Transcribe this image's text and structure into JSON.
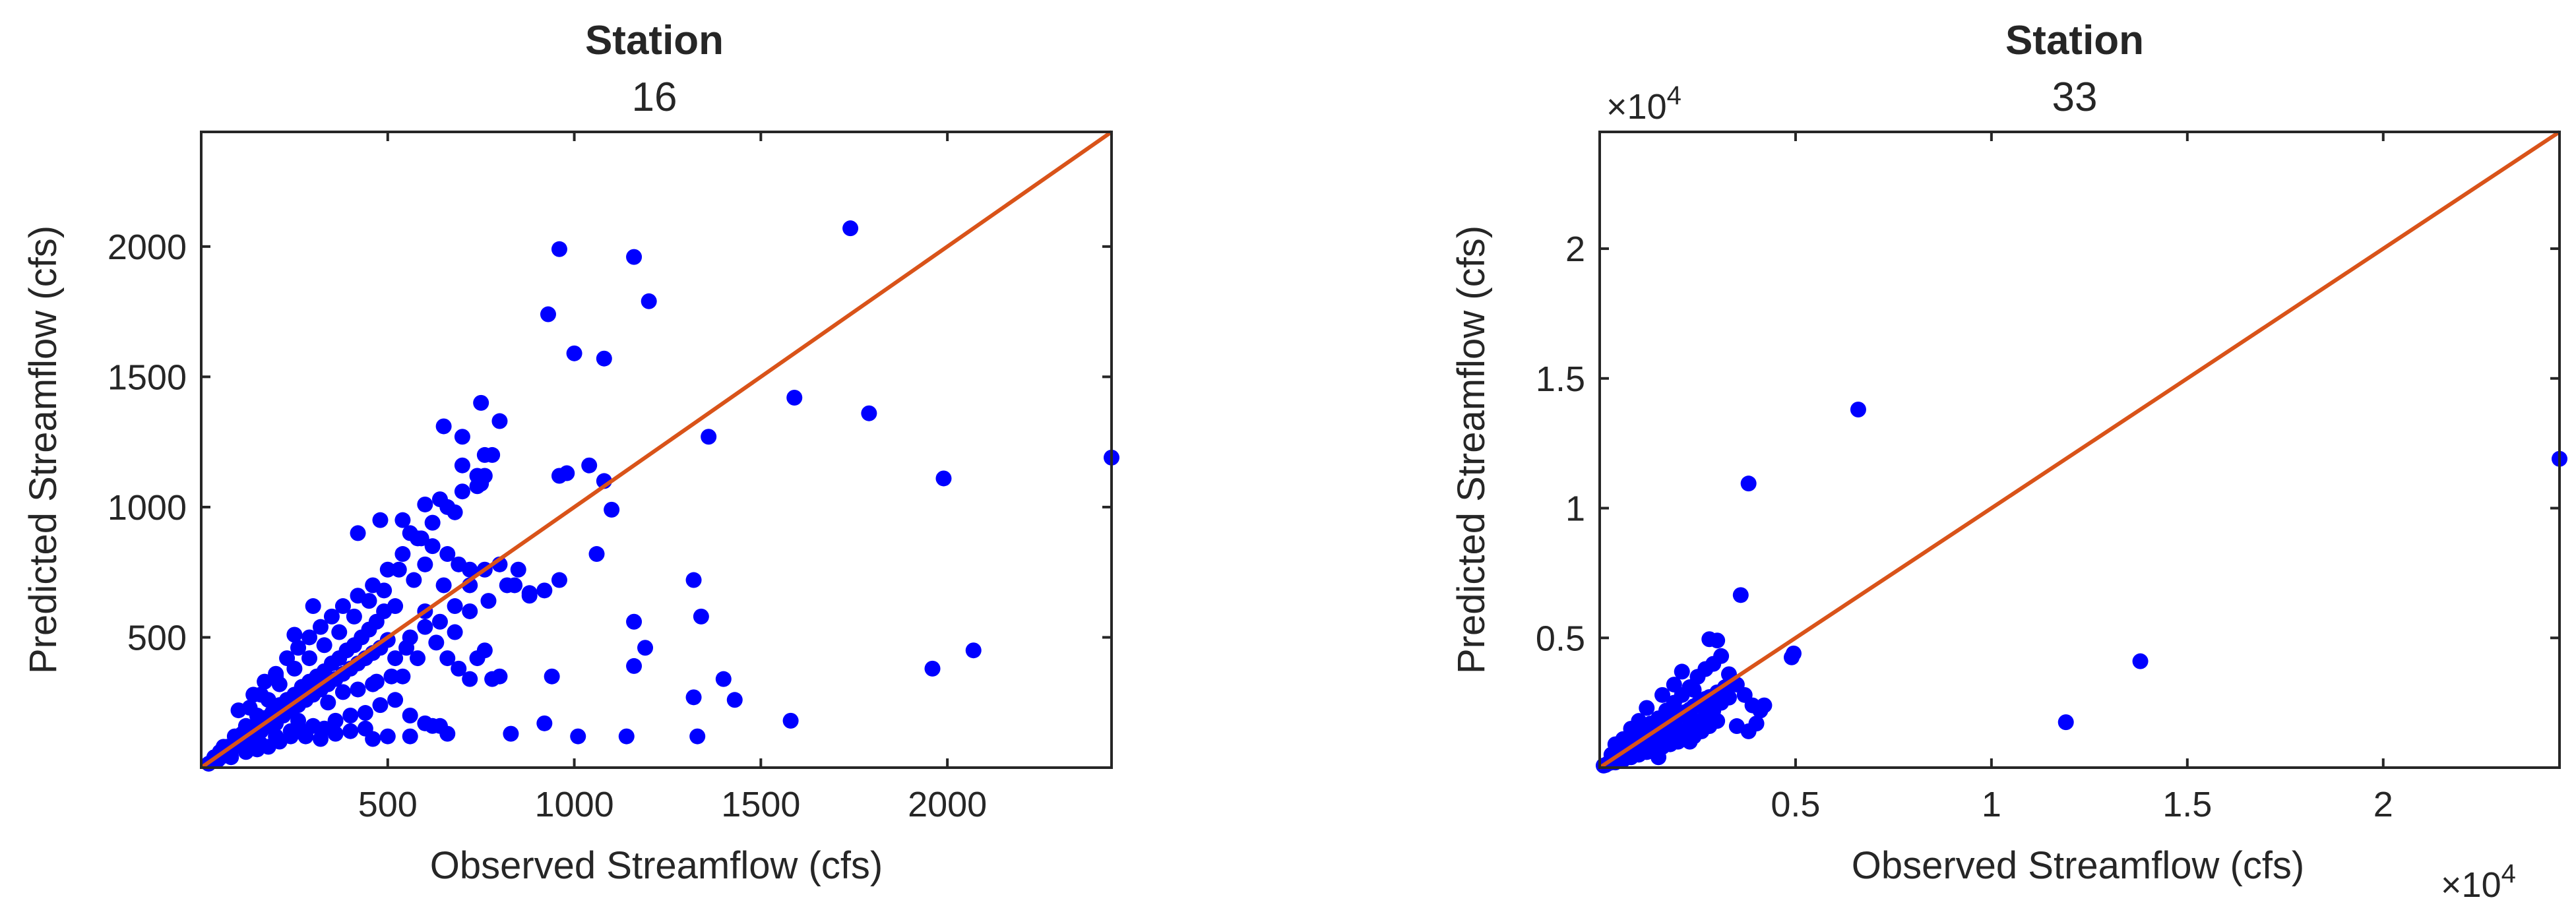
{
  "chart_data": [
    {
      "type": "scatter",
      "title": "Station",
      "subtitle": "16",
      "xlabel": "Observed Streamflow (cfs)",
      "ylabel": "Predicted Streamflow (cfs)",
      "xlim": [
        0,
        2440
      ],
      "ylim": [
        0,
        2440
      ],
      "xticks": [
        500,
        1000,
        1500,
        2000
      ],
      "xtick_labels": [
        "500",
        "1000",
        "1500",
        "2000"
      ],
      "yticks": [
        500,
        1000,
        1500,
        2000
      ],
      "ytick_labels": [
        "500",
        "1000",
        "1500",
        "2000"
      ],
      "x_exponent_label": "",
      "y_exponent_label": "",
      "reference_line": "y = x",
      "series_color": "#0000FF",
      "reference_color": "#D95319",
      "points": [
        [
          20,
          15
        ],
        [
          30,
          25
        ],
        [
          35,
          40
        ],
        [
          45,
          30
        ],
        [
          50,
          60
        ],
        [
          60,
          45
        ],
        [
          70,
          80
        ],
        [
          80,
          65
        ],
        [
          90,
          100
        ],
        [
          100,
          85
        ],
        [
          110,
          130
        ],
        [
          120,
          95
        ],
        [
          130,
          150
        ],
        [
          140,
          110
        ],
        [
          150,
          170
        ],
        [
          160,
          140
        ],
        [
          170,
          190
        ],
        [
          180,
          160
        ],
        [
          190,
          210
        ],
        [
          200,
          170
        ],
        [
          210,
          240
        ],
        [
          220,
          200
        ],
        [
          230,
          260
        ],
        [
          240,
          220
        ],
        [
          250,
          280
        ],
        [
          260,
          240
        ],
        [
          270,
          310
        ],
        [
          280,
          260
        ],
        [
          290,
          330
        ],
        [
          300,
          280
        ],
        [
          310,
          350
        ],
        [
          320,
          300
        ],
        [
          330,
          370
        ],
        [
          340,
          320
        ],
        [
          350,
          400
        ],
        [
          360,
          340
        ],
        [
          370,
          420
        ],
        [
          380,
          360
        ],
        [
          390,
          450
        ],
        [
          400,
          380
        ],
        [
          410,
          470
        ],
        [
          420,
          400
        ],
        [
          430,
          500
        ],
        [
          440,
          420
        ],
        [
          450,
          530
        ],
        [
          460,
          440
        ],
        [
          470,
          560
        ],
        [
          480,
          460
        ],
        [
          490,
          600
        ],
        [
          500,
          490
        ],
        [
          100,
          220
        ],
        [
          140,
          280
        ],
        [
          170,
          330
        ],
        [
          200,
          360
        ],
        [
          230,
          420
        ],
        [
          260,
          460
        ],
        [
          290,
          500
        ],
        [
          320,
          540
        ],
        [
          350,
          580
        ],
        [
          380,
          620
        ],
        [
          420,
          660
        ],
        [
          460,
          700
        ],
        [
          500,
          760
        ],
        [
          540,
          820
        ],
        [
          580,
          880
        ],
        [
          620,
          940
        ],
        [
          660,
          1000
        ],
        [
          700,
          1060
        ],
        [
          740,
          1120
        ],
        [
          780,
          1200
        ],
        [
          80,
          40
        ],
        [
          120,
          60
        ],
        [
          150,
          70
        ],
        [
          180,
          80
        ],
        [
          210,
          100
        ],
        [
          240,
          120
        ],
        [
          270,
          140
        ],
        [
          300,
          160
        ],
        [
          330,
          150
        ],
        [
          360,
          180
        ],
        [
          400,
          200
        ],
        [
          440,
          210
        ],
        [
          480,
          240
        ],
        [
          520,
          260
        ],
        [
          560,
          200
        ],
        [
          600,
          170
        ],
        [
          640,
          160
        ],
        [
          520,
          420
        ],
        [
          560,
          500
        ],
        [
          600,
          540
        ],
        [
          640,
          560
        ],
        [
          680,
          620
        ],
        [
          720,
          700
        ],
        [
          760,
          760
        ],
        [
          800,
          780
        ],
        [
          840,
          700
        ],
        [
          880,
          660
        ],
        [
          920,
          680
        ],
        [
          960,
          720
        ],
        [
          520,
          620
        ],
        [
          420,
          900
        ],
        [
          480,
          950
        ],
        [
          540,
          950
        ],
        [
          600,
          1010
        ],
        [
          650,
          1310
        ],
        [
          700,
          1270
        ],
        [
          750,
          1400
        ],
        [
          760,
          1120
        ],
        [
          800,
          1330
        ],
        [
          740,
          1080
        ],
        [
          700,
          1160
        ],
        [
          760,
          1200
        ],
        [
          640,
          1030
        ],
        [
          680,
          980
        ],
        [
          560,
          900
        ],
        [
          590,
          880
        ],
        [
          620,
          850
        ],
        [
          660,
          820
        ],
        [
          690,
          780
        ],
        [
          720,
          760
        ],
        [
          960,
          1990
        ],
        [
          930,
          1740
        ],
        [
          1000,
          1590
        ],
        [
          1080,
          1570
        ],
        [
          1160,
          1960
        ],
        [
          1200,
          1790
        ],
        [
          1740,
          2070
        ],
        [
          1590,
          1420
        ],
        [
          1790,
          1360
        ],
        [
          1360,
          1270
        ],
        [
          960,
          1120
        ],
        [
          1040,
          1160
        ],
        [
          1080,
          1100
        ],
        [
          1100,
          990
        ],
        [
          1060,
          820
        ],
        [
          980,
          1130
        ],
        [
          1160,
          560
        ],
        [
          1190,
          460
        ],
        [
          1160,
          390
        ],
        [
          1320,
          720
        ],
        [
          1340,
          580
        ],
        [
          1430,
          260
        ],
        [
          1400,
          340
        ],
        [
          1580,
          180
        ],
        [
          1960,
          380
        ],
        [
          2070,
          450
        ],
        [
          2440,
          1190
        ],
        [
          1990,
          1110
        ],
        [
          1330,
          120
        ],
        [
          1320,
          270
        ],
        [
          1140,
          120
        ],
        [
          1010,
          120
        ],
        [
          940,
          350
        ],
        [
          920,
          170
        ],
        [
          880,
          670
        ],
        [
          850,
          760
        ],
        [
          780,
          340
        ],
        [
          800,
          350
        ],
        [
          830,
          130
        ],
        [
          760,
          450
        ],
        [
          740,
          420
        ],
        [
          660,
          130
        ],
        [
          620,
          160
        ],
        [
          560,
          120
        ],
        [
          500,
          120
        ],
        [
          460,
          110
        ],
        [
          300,
          620
        ],
        [
          250,
          510
        ],
        [
          200,
          350
        ],
        [
          160,
          280
        ],
        [
          130,
          230
        ],
        [
          380,
          290
        ],
        [
          420,
          300
        ],
        [
          460,
          320
        ],
        [
          340,
          250
        ],
        [
          260,
          180
        ],
        [
          160,
          90
        ],
        [
          200,
          120
        ],
        [
          240,
          140
        ],
        [
          280,
          120
        ],
        [
          320,
          110
        ],
        [
          360,
          130
        ],
        [
          400,
          140
        ],
        [
          440,
          150
        ],
        [
          540,
          350
        ],
        [
          580,
          420
        ],
        [
          600,
          600
        ],
        [
          630,
          480
        ],
        [
          550,
          460
        ],
        [
          510,
          350
        ],
        [
          470,
          330
        ],
        [
          570,
          720
        ],
        [
          530,
          760
        ],
        [
          490,
          680
        ],
        [
          450,
          640
        ],
        [
          410,
          580
        ],
        [
          370,
          520
        ],
        [
          330,
          470
        ],
        [
          290,
          420
        ],
        [
          250,
          380
        ],
        [
          210,
          320
        ],
        [
          180,
          260
        ],
        [
          150,
          200
        ],
        [
          120,
          160
        ],
        [
          90,
          120
        ],
        [
          60,
          80
        ],
        [
          750,
          1090
        ],
        [
          600,
          780
        ],
        [
          650,
          700
        ],
        [
          680,
          520
        ],
        [
          720,
          600
        ],
        [
          770,
          640
        ],
        [
          820,
          700
        ],
        [
          660,
          420
        ],
        [
          690,
          380
        ],
        [
          720,
          340
        ]
      ]
    },
    {
      "type": "scatter",
      "title": "Station",
      "subtitle": "33",
      "xlabel": "Observed Streamflow (cfs)",
      "ylabel": "Predicted Streamflow (cfs)",
      "xlim": [
        0,
        24500
      ],
      "ylim": [
        0,
        24500
      ],
      "xticks": [
        5000,
        10000,
        15000,
        20000
      ],
      "xtick_labels": [
        "0.5",
        "1",
        "1.5",
        "2"
      ],
      "yticks": [
        5000,
        10000,
        15000,
        20000
      ],
      "ytick_labels": [
        "0.5",
        "1",
        "1.5",
        "2"
      ],
      "x_exponent_label": "×10",
      "x_exponent": "4",
      "y_exponent_label": "×10",
      "y_exponent": "4",
      "reference_line": "y = x",
      "series_color": "#0000FF",
      "reference_color": "#D95319",
      "points": [
        [
          100,
          80
        ],
        [
          200,
          150
        ],
        [
          300,
          260
        ],
        [
          400,
          350
        ],
        [
          500,
          420
        ],
        [
          600,
          560
        ],
        [
          700,
          640
        ],
        [
          800,
          720
        ],
        [
          900,
          850
        ],
        [
          1000,
          960
        ],
        [
          1100,
          1050
        ],
        [
          1200,
          1150
        ],
        [
          1300,
          1260
        ],
        [
          1400,
          1330
        ],
        [
          1500,
          1450
        ],
        [
          1600,
          1560
        ],
        [
          1700,
          1650
        ],
        [
          1800,
          1740
        ],
        [
          1900,
          1850
        ],
        [
          2000,
          1960
        ],
        [
          2100,
          2050
        ],
        [
          2200,
          2150
        ],
        [
          2300,
          2240
        ],
        [
          2400,
          2360
        ],
        [
          2500,
          2450
        ],
        [
          2600,
          2550
        ],
        [
          2700,
          2650
        ],
        [
          2800,
          2720
        ],
        [
          3000,
          2900
        ],
        [
          3200,
          3100
        ],
        [
          300,
          500
        ],
        [
          500,
          700
        ],
        [
          700,
          900
        ],
        [
          900,
          1200
        ],
        [
          1100,
          1400
        ],
        [
          1300,
          1700
        ],
        [
          1500,
          1900
        ],
        [
          1700,
          2200
        ],
        [
          1900,
          2500
        ],
        [
          2100,
          2800
        ],
        [
          2300,
          3100
        ],
        [
          2500,
          3500
        ],
        [
          2700,
          3800
        ],
        [
          2900,
          4000
        ],
        [
          3100,
          4300
        ],
        [
          3300,
          3600
        ],
        [
          3500,
          3200
        ],
        [
          3700,
          2800
        ],
        [
          3900,
          2400
        ],
        [
          4100,
          2200
        ],
        [
          400,
          200
        ],
        [
          600,
          300
        ],
        [
          800,
          400
        ],
        [
          1000,
          500
        ],
        [
          1200,
          600
        ],
        [
          1400,
          700
        ],
        [
          1600,
          800
        ],
        [
          1800,
          900
        ],
        [
          2000,
          1000
        ],
        [
          2200,
          1100
        ],
        [
          2400,
          1200
        ],
        [
          2600,
          1400
        ],
        [
          2800,
          1600
        ],
        [
          3000,
          1800
        ],
        [
          3500,
          1600
        ],
        [
          3800,
          1400
        ],
        [
          4000,
          1700
        ],
        [
          4200,
          2400
        ],
        [
          2300,
          1000
        ],
        [
          1500,
          400
        ],
        [
          2800,
          4950
        ],
        [
          3000,
          4900
        ],
        [
          3600,
          6650
        ],
        [
          3800,
          10950
        ],
        [
          4900,
          4250
        ],
        [
          4950,
          4400
        ],
        [
          6600,
          13800
        ],
        [
          13800,
          4100
        ],
        [
          11900,
          1750
        ],
        [
          24500,
          11900
        ],
        [
          1200,
          2300
        ],
        [
          1600,
          2800
        ],
        [
          1900,
          3200
        ],
        [
          2100,
          3700
        ],
        [
          2400,
          3000
        ],
        [
          2600,
          2600
        ],
        [
          1000,
          1800
        ],
        [
          800,
          1500
        ],
        [
          600,
          1100
        ],
        [
          400,
          900
        ],
        [
          3300,
          2700
        ],
        [
          3100,
          2500
        ],
        [
          2900,
          2200
        ],
        [
          2700,
          2000
        ],
        [
          2500,
          1800
        ],
        [
          2300,
          1600
        ],
        [
          2100,
          1400
        ],
        [
          1900,
          1200
        ],
        [
          1700,
          1100
        ],
        [
          1500,
          1000
        ],
        [
          1300,
          900
        ],
        [
          1100,
          800
        ],
        [
          900,
          650
        ],
        [
          700,
          500
        ],
        [
          500,
          350
        ],
        [
          300,
          200
        ],
        [
          150,
          100
        ],
        [
          250,
          180
        ],
        [
          350,
          300
        ],
        [
          450,
          400
        ]
      ]
    }
  ]
}
